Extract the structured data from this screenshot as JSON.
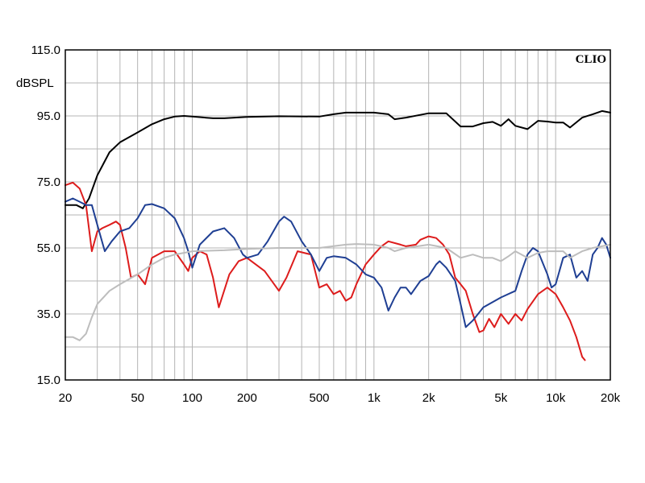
{
  "chart_data": {
    "type": "line",
    "xscale": "log",
    "xlim": [
      20,
      20000
    ],
    "ylim": [
      15,
      115
    ],
    "ylabel": "dBSPL",
    "brand": "CLIO",
    "grid": true,
    "y_ticks": [
      {
        "value": 115,
        "label": "115.0"
      },
      {
        "value": 95,
        "label": "95.0"
      },
      {
        "value": 75,
        "label": "75.0"
      },
      {
        "value": 55,
        "label": "55.0"
      },
      {
        "value": 35,
        "label": "35.0"
      },
      {
        "value": 15,
        "label": "15.0"
      }
    ],
    "x_ticks": [
      {
        "value": 20,
        "label": "20"
      },
      {
        "value": 50,
        "label": "50"
      },
      {
        "value": 100,
        "label": "100"
      },
      {
        "value": 200,
        "label": "200"
      },
      {
        "value": 500,
        "label": "500"
      },
      {
        "value": 1000,
        "label": "1k"
      },
      {
        "value": 2000,
        "label": "2k"
      },
      {
        "value": 5000,
        "label": "5k"
      },
      {
        "value": 10000,
        "label": "10k"
      },
      {
        "value": 20000,
        "label": "20k"
      }
    ],
    "series": [
      {
        "color": "#000000",
        "points": [
          [
            20,
            68
          ],
          [
            23,
            68
          ],
          [
            25,
            67
          ],
          [
            27,
            70
          ],
          [
            30,
            77
          ],
          [
            35,
            84
          ],
          [
            40,
            87
          ],
          [
            50,
            90
          ],
          [
            60,
            92.5
          ],
          [
            70,
            94
          ],
          [
            80,
            94.8
          ],
          [
            90,
            95
          ],
          [
            100,
            94.8
          ],
          [
            130,
            94.3
          ],
          [
            150,
            94.3
          ],
          [
            200,
            94.7
          ],
          [
            300,
            94.9
          ],
          [
            500,
            94.8
          ],
          [
            600,
            95.5
          ],
          [
            700,
            96
          ],
          [
            1000,
            96
          ],
          [
            1200,
            95.5
          ],
          [
            1300,
            94
          ],
          [
            1500,
            94.5
          ],
          [
            2000,
            95.8
          ],
          [
            2500,
            95.8
          ],
          [
            3000,
            91.8
          ],
          [
            3500,
            91.8
          ],
          [
            4000,
            92.8
          ],
          [
            4500,
            93.2
          ],
          [
            5000,
            92
          ],
          [
            5500,
            94
          ],
          [
            6000,
            92
          ],
          [
            7000,
            91
          ],
          [
            8000,
            93.5
          ],
          [
            9000,
            93.3
          ],
          [
            10000,
            93
          ],
          [
            11000,
            93
          ],
          [
            12000,
            91.5
          ],
          [
            14000,
            94.5
          ],
          [
            16000,
            95.5
          ],
          [
            18000,
            96.5
          ],
          [
            20000,
            96
          ]
        ]
      },
      {
        "color": "#dd1c1c",
        "points": [
          [
            20,
            74
          ],
          [
            22,
            74.8
          ],
          [
            24,
            73
          ],
          [
            26,
            68
          ],
          [
            28,
            54
          ],
          [
            30,
            60
          ],
          [
            32,
            61
          ],
          [
            35,
            62
          ],
          [
            38,
            63
          ],
          [
            40,
            62
          ],
          [
            43,
            55
          ],
          [
            46,
            46
          ],
          [
            50,
            47
          ],
          [
            55,
            44
          ],
          [
            60,
            52
          ],
          [
            70,
            54
          ],
          [
            80,
            54
          ],
          [
            90,
            50
          ],
          [
            95,
            48
          ],
          [
            100,
            52
          ],
          [
            110,
            54
          ],
          [
            120,
            53
          ],
          [
            130,
            46
          ],
          [
            140,
            37
          ],
          [
            160,
            47
          ],
          [
            180,
            51
          ],
          [
            200,
            52
          ],
          [
            250,
            48
          ],
          [
            300,
            42
          ],
          [
            330,
            46
          ],
          [
            380,
            54
          ],
          [
            450,
            53
          ],
          [
            500,
            43
          ],
          [
            550,
            44
          ],
          [
            600,
            41
          ],
          [
            650,
            42
          ],
          [
            700,
            39
          ],
          [
            750,
            40
          ],
          [
            800,
            44
          ],
          [
            900,
            50
          ],
          [
            1000,
            53
          ],
          [
            1100,
            55.5
          ],
          [
            1200,
            57
          ],
          [
            1400,
            56
          ],
          [
            1500,
            55.5
          ],
          [
            1700,
            56
          ],
          [
            1800,
            57.5
          ],
          [
            2000,
            58.5
          ],
          [
            2200,
            58
          ],
          [
            2400,
            56
          ],
          [
            2600,
            53
          ],
          [
            2800,
            46
          ],
          [
            3000,
            44
          ],
          [
            3200,
            42
          ],
          [
            3500,
            35
          ],
          [
            3800,
            29.5
          ],
          [
            4000,
            30
          ],
          [
            4300,
            33.5
          ],
          [
            4600,
            31
          ],
          [
            5000,
            35
          ],
          [
            5500,
            32
          ],
          [
            6000,
            35
          ],
          [
            6500,
            33
          ],
          [
            7000,
            36.5
          ],
          [
            8000,
            41
          ],
          [
            9000,
            43
          ],
          [
            10000,
            41
          ],
          [
            11000,
            37
          ],
          [
            12000,
            33
          ],
          [
            13000,
            28
          ],
          [
            14000,
            22
          ],
          [
            14500,
            21
          ]
        ]
      },
      {
        "color": "#1f3f93",
        "points": [
          [
            20,
            69
          ],
          [
            22,
            70
          ],
          [
            24,
            69
          ],
          [
            26,
            68
          ],
          [
            28,
            68
          ],
          [
            30,
            62
          ],
          [
            33,
            54
          ],
          [
            36,
            57
          ],
          [
            40,
            60
          ],
          [
            45,
            61
          ],
          [
            50,
            64
          ],
          [
            55,
            68
          ],
          [
            60,
            68.3
          ],
          [
            70,
            67
          ],
          [
            80,
            64
          ],
          [
            90,
            58
          ],
          [
            95,
            54
          ],
          [
            100,
            49
          ],
          [
            110,
            56
          ],
          [
            130,
            60
          ],
          [
            150,
            61
          ],
          [
            170,
            58
          ],
          [
            190,
            53
          ],
          [
            200,
            52
          ],
          [
            230,
            53
          ],
          [
            260,
            57
          ],
          [
            300,
            63
          ],
          [
            320,
            64.5
          ],
          [
            350,
            63
          ],
          [
            400,
            57
          ],
          [
            450,
            53
          ],
          [
            500,
            48
          ],
          [
            550,
            52
          ],
          [
            600,
            52.5
          ],
          [
            700,
            52
          ],
          [
            800,
            50
          ],
          [
            900,
            47
          ],
          [
            1000,
            46
          ],
          [
            1100,
            43
          ],
          [
            1200,
            36
          ],
          [
            1300,
            40
          ],
          [
            1400,
            43
          ],
          [
            1500,
            43
          ],
          [
            1600,
            41
          ],
          [
            1800,
            45
          ],
          [
            2000,
            46.5
          ],
          [
            2200,
            50
          ],
          [
            2300,
            51
          ],
          [
            2500,
            49
          ],
          [
            2800,
            45
          ],
          [
            3000,
            38
          ],
          [
            3200,
            31
          ],
          [
            3500,
            33
          ],
          [
            4000,
            37
          ],
          [
            5000,
            40
          ],
          [
            6000,
            42
          ],
          [
            6500,
            48
          ],
          [
            7000,
            53
          ],
          [
            7500,
            55
          ],
          [
            8000,
            54
          ],
          [
            9000,
            47
          ],
          [
            9500,
            43
          ],
          [
            10000,
            44
          ],
          [
            11000,
            52
          ],
          [
            12000,
            53
          ],
          [
            13000,
            46
          ],
          [
            14000,
            48
          ],
          [
            15000,
            45
          ],
          [
            16000,
            53
          ],
          [
            17000,
            55
          ],
          [
            18000,
            58
          ],
          [
            19000,
            56
          ],
          [
            20000,
            52
          ]
        ]
      },
      {
        "color": "#bdbdbd",
        "points": [
          [
            20,
            28
          ],
          [
            22,
            28
          ],
          [
            24,
            27
          ],
          [
            26,
            29
          ],
          [
            28,
            34
          ],
          [
            30,
            38
          ],
          [
            35,
            42
          ],
          [
            40,
            44
          ],
          [
            50,
            47
          ],
          [
            60,
            50
          ],
          [
            70,
            52
          ],
          [
            80,
            53
          ],
          [
            90,
            53.5
          ],
          [
            100,
            54
          ],
          [
            150,
            54.3
          ],
          [
            200,
            54.7
          ],
          [
            300,
            55
          ],
          [
            500,
            55
          ],
          [
            700,
            56
          ],
          [
            800,
            56.2
          ],
          [
            1000,
            56
          ],
          [
            1200,
            55
          ],
          [
            1300,
            54
          ],
          [
            1500,
            55
          ],
          [
            2000,
            56
          ],
          [
            2500,
            55
          ],
          [
            3000,
            52
          ],
          [
            3500,
            53
          ],
          [
            4000,
            52
          ],
          [
            4500,
            52
          ],
          [
            5000,
            51
          ],
          [
            5500,
            52.5
          ],
          [
            6000,
            54
          ],
          [
            7000,
            52
          ],
          [
            8000,
            53.5
          ],
          [
            9000,
            54
          ],
          [
            10000,
            54
          ],
          [
            11000,
            54
          ],
          [
            12000,
            52
          ],
          [
            14000,
            54
          ],
          [
            16000,
            55
          ],
          [
            18000,
            55.5
          ],
          [
            20000,
            56
          ]
        ]
      }
    ]
  }
}
